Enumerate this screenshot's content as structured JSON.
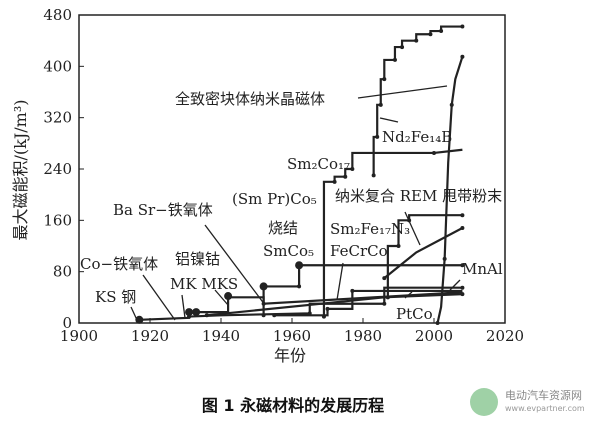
{
  "chart_data": {
    "type": "line",
    "xlabel": "年份",
    "ylabel": "最大磁能积/(kJ/m³)",
    "xlim": [
      1900,
      2020
    ],
    "ylim": [
      0,
      480
    ],
    "xticks": [
      1900,
      1920,
      1940,
      1960,
      1980,
      2000,
      2020
    ],
    "yticks": [
      0,
      80,
      160,
      240,
      320,
      400,
      480
    ],
    "series": [
      {
        "x": [
          1983,
          1983,
          1984,
          1984,
          1985,
          1985,
          1986,
          1986,
          1989,
          1989,
          1991,
          1991,
          1995,
          1995,
          1999,
          1999,
          2002,
          2002,
          2008
        ],
        "y": [
          230,
          290,
          290,
          340,
          340,
          380,
          380,
          410,
          410,
          430,
          430,
          440,
          440,
          450,
          450,
          455,
          455,
          462,
          462
        ]
      },
      {
        "x": [
          1969,
          1969,
          1972,
          1972,
          1975,
          1975,
          1977,
          1977,
          2000,
          2008
        ],
        "y": [
          10,
          220,
          220,
          228,
          228,
          240,
          240,
          265,
          265,
          270
        ]
      },
      {
        "x": [
          2001,
          2002,
          2003,
          2004,
          2005,
          2006,
          2008
        ],
        "y": [
          0,
          25,
          100,
          250,
          340,
          380,
          415
        ]
      },
      {
        "x": [
          1987,
          1987,
          1990,
          1990,
          1993,
          1993,
          2008
        ],
        "y": [
          40,
          120,
          120,
          160,
          160,
          168,
          168
        ]
      },
      {
        "x": [
          1986,
          1995,
          2008
        ],
        "y": [
          70,
          110,
          148
        ]
      },
      {
        "x": [
          1952,
          1952,
          1962,
          1962,
          2008
        ],
        "y": [
          12,
          57,
          57,
          90,
          90
        ]
      },
      {
        "x": [
          1917,
          1931,
          1931,
          1942,
          1942,
          1952,
          1952,
          2008
        ],
        "y": [
          5,
          8,
          17,
          17,
          40,
          40,
          30,
          48
        ]
      },
      {
        "x": [
          1931,
          1940,
          1965,
          1965,
          1986,
          1986,
          2008
        ],
        "y": [
          10,
          12,
          15,
          30,
          30,
          55,
          55
        ]
      },
      {
        "x": [
          1955,
          1970,
          1970,
          1977,
          1977,
          2008
        ],
        "y": [
          12,
          12,
          22,
          22,
          50,
          50
        ]
      },
      {
        "x": [
          1936,
          1986,
          2008
        ],
        "y": [
          12,
          40,
          45
        ]
      }
    ],
    "annotations": [
      "全致密块体纳米晶磁体",
      "Nd₂Fe₁₄B",
      "Sm₂Co₁₇",
      "(Sm Pr)Co₅",
      "纳米复合 REM 甩带粉末",
      "Sm₂Fe₁₇N₃",
      "FeCrCo",
      "烧结",
      "SmCo₅",
      "Ba Sr−铁氧体",
      "Co−铁氧体",
      "铝镍钴",
      "MK MKS",
      "KS 钢",
      "MnAl",
      "PtCo"
    ],
    "grid": false
  },
  "caption": "图 1  永磁材料的发展历程",
  "watermark": {
    "name": "电动汽车资源网",
    "url": "www.evpartner.com",
    "color": "#5fb36a"
  }
}
